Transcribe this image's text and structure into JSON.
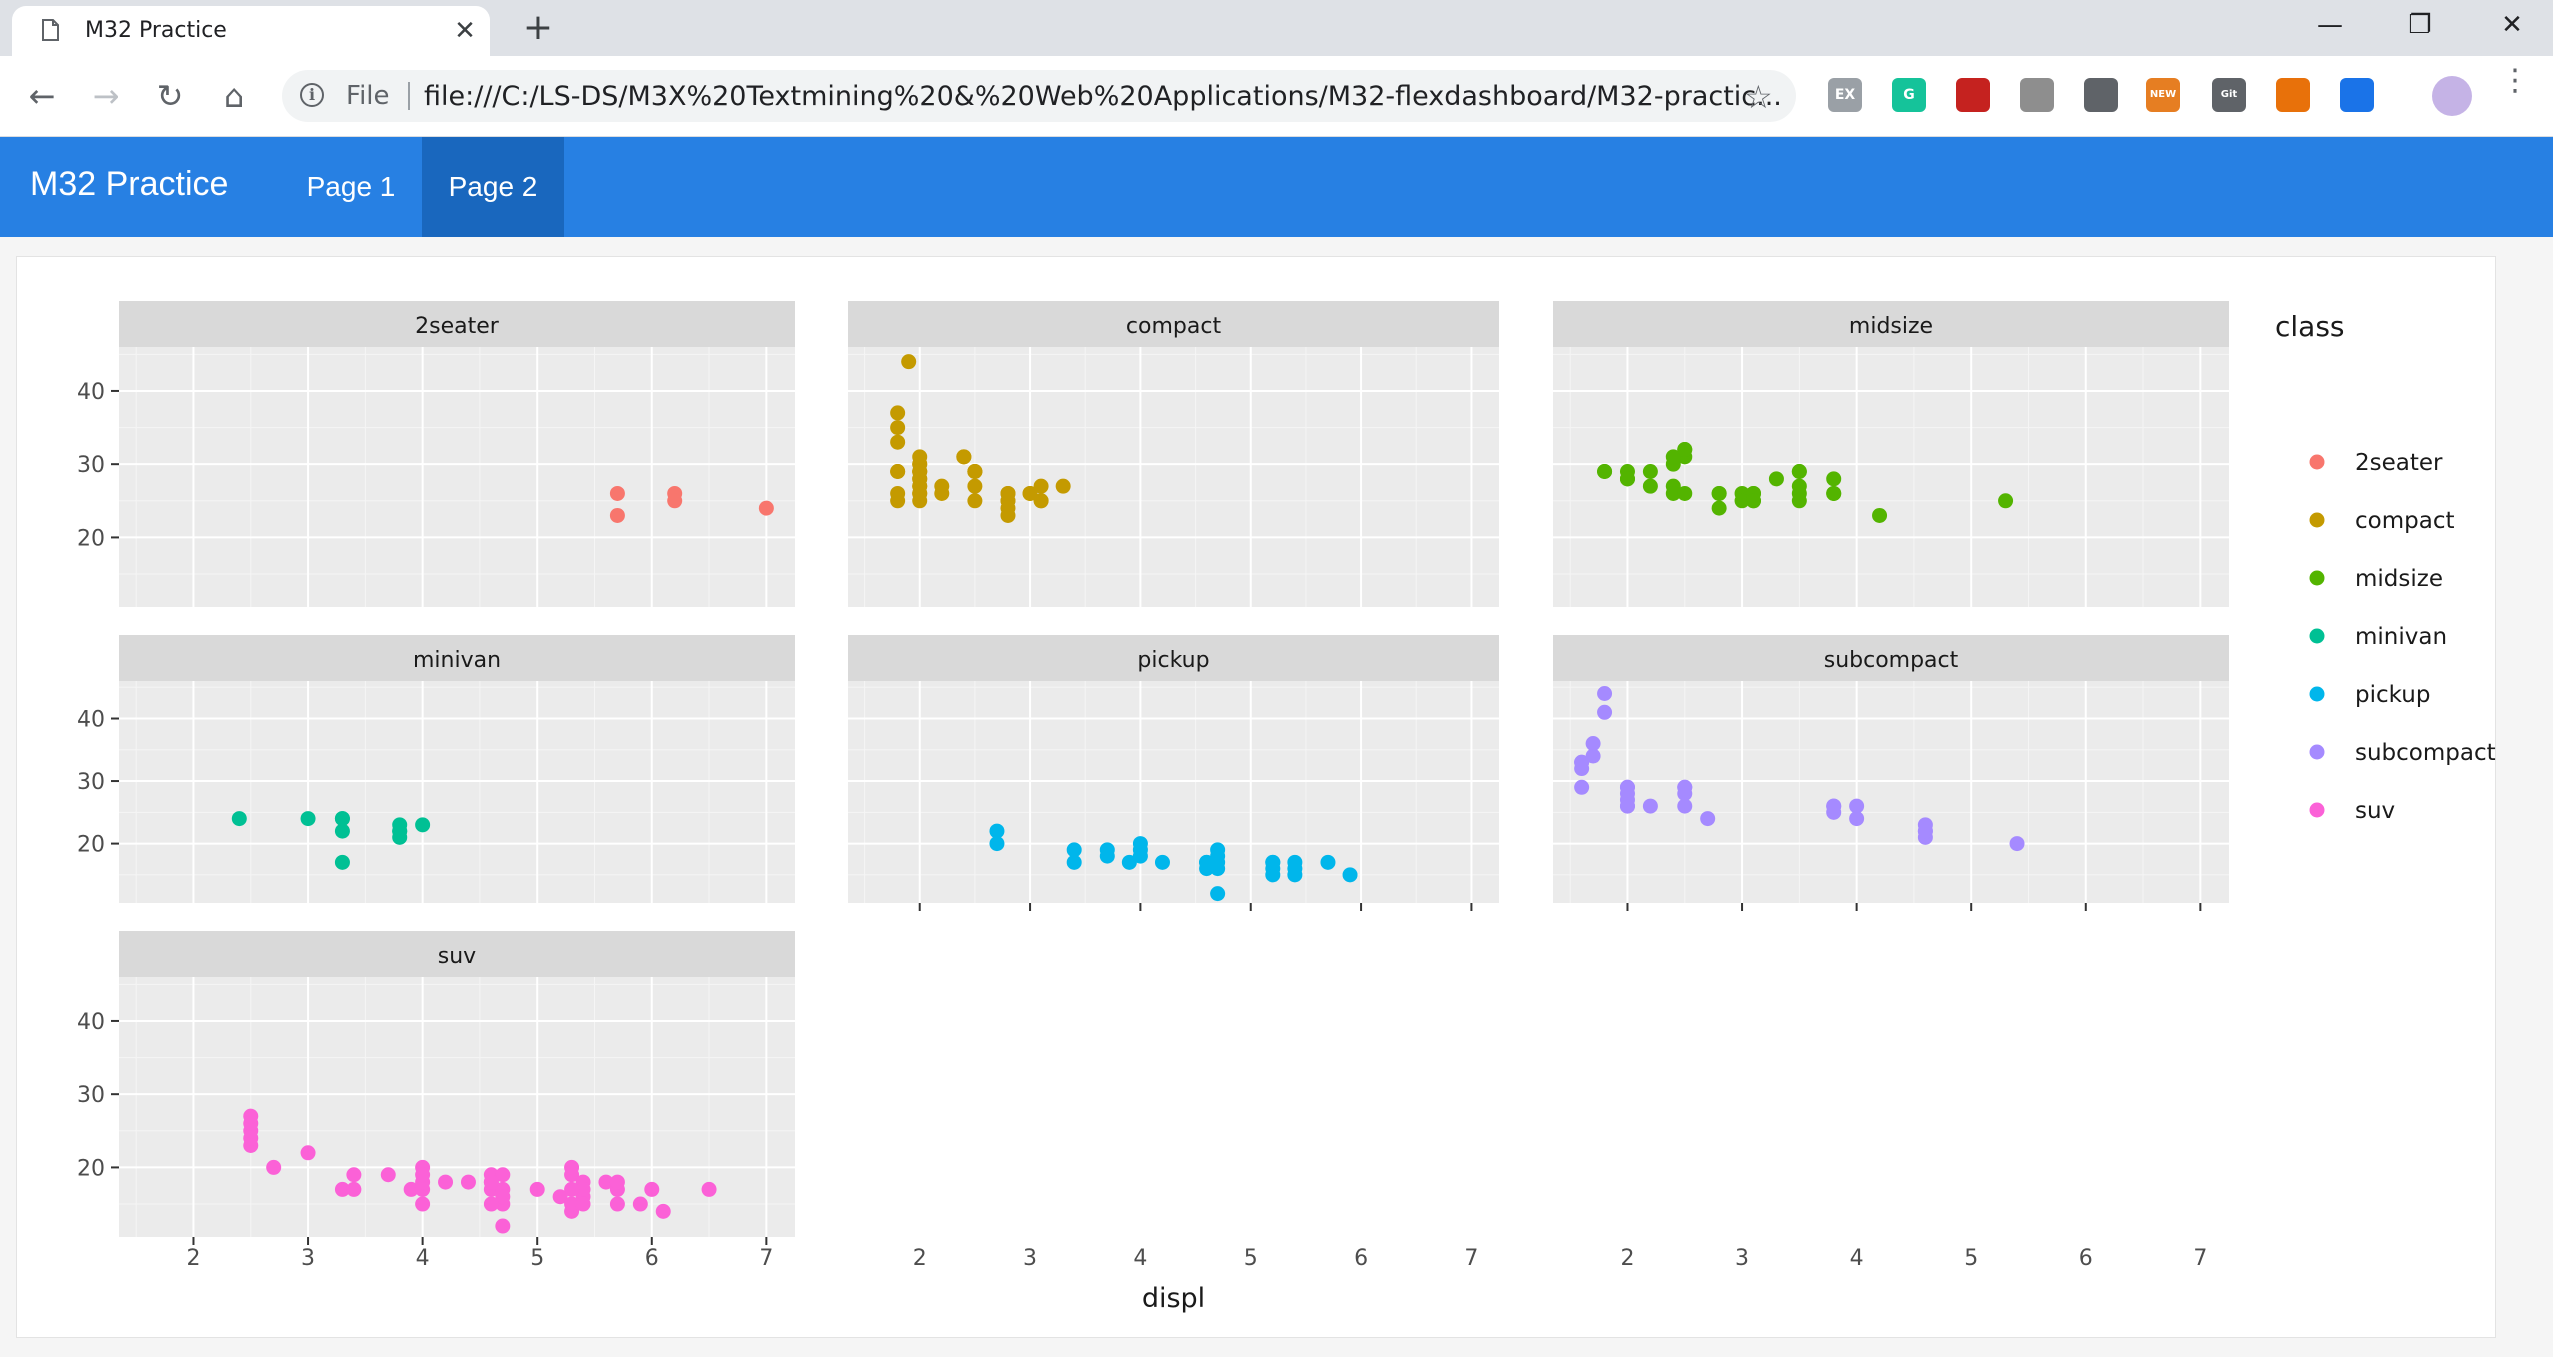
{
  "browser": {
    "tab_title": "M32 Practice",
    "tab_close_glyph": "✕",
    "new_tab_glyph": "+",
    "url_scheme": "File",
    "url": "file:///C:/LS-DS/M3X%20Textmining%20&%20Web%20Applications/M32-flexdashboard/M32-practic...",
    "extensions": [
      {
        "label": "EX",
        "color": "#9aa0a6"
      },
      {
        "label": "G",
        "color": "#15c39a"
      },
      {
        "label": "",
        "color": "#c5221f"
      },
      {
        "label": "",
        "color": "#8e8e8e"
      },
      {
        "label": "",
        "color": "#5f6368"
      },
      {
        "label": "NEW",
        "color": "#e67e22"
      },
      {
        "label": "Git Zip",
        "color": "#5f6368"
      },
      {
        "label": "",
        "color": "#e8710a"
      },
      {
        "label": "",
        "color": "#1a73e8"
      }
    ]
  },
  "dashboard": {
    "brand": "M32 Practice",
    "nav": [
      "Page 1",
      "Page 2"
    ],
    "active_page": "Page 2",
    "navbar_color": "#2780e3",
    "active_color": "#1967be"
  },
  "chart_data": {
    "type": "scatter",
    "facet_by": "class",
    "xlabel": "displ",
    "ylabel": "",
    "x_ticks": [
      2,
      3,
      4,
      5,
      6,
      7
    ],
    "y_ticks": [
      20,
      30,
      40
    ],
    "xlim": [
      1.35,
      7.25
    ],
    "legend": {
      "title": "class",
      "placement": "right",
      "entries": [
        "2seater",
        "compact",
        "midsize",
        "minivan",
        "pickup",
        "subcompact",
        "suv"
      ]
    },
    "colors": {
      "2seater": "#f8766d",
      "compact": "#c49a00",
      "midsize": "#53b400",
      "minivan": "#00c094",
      "pickup": "#00b6eb",
      "subcompact": "#a58aff",
      "suv": "#fb61d7"
    },
    "panel_bg": "#ebebeb",
    "strip_bg": "#d9d9d9",
    "grid": true,
    "facets": [
      {
        "name": "2seater",
        "ylim": [
          10.5,
          46
        ],
        "points": [
          [
            5.7,
            26
          ],
          [
            5.7,
            23
          ],
          [
            6.2,
            26
          ],
          [
            6.2,
            25
          ],
          [
            7.0,
            24
          ]
        ]
      },
      {
        "name": "compact",
        "ylim": [
          10.5,
          46
        ],
        "points": [
          [
            1.8,
            29
          ],
          [
            1.8,
            29
          ],
          [
            2.0,
            31
          ],
          [
            2.0,
            30
          ],
          [
            2.8,
            26
          ],
          [
            2.8,
            26
          ],
          [
            3.1,
            27
          ],
          [
            1.8,
            26
          ],
          [
            1.8,
            25
          ],
          [
            2.0,
            28
          ],
          [
            2.0,
            27
          ],
          [
            2.8,
            25
          ],
          [
            2.8,
            25
          ],
          [
            3.1,
            25
          ],
          [
            3.1,
            25
          ],
          [
            2.2,
            26
          ],
          [
            2.2,
            27
          ],
          [
            2.4,
            31
          ],
          [
            2.4,
            31
          ],
          [
            3.0,
            26
          ],
          [
            3.0,
            26
          ],
          [
            3.3,
            27
          ],
          [
            1.8,
            35
          ],
          [
            1.8,
            37
          ],
          [
            1.8,
            33
          ],
          [
            1.9,
            44
          ],
          [
            2.0,
            29
          ],
          [
            2.0,
            26
          ],
          [
            2.0,
            29
          ],
          [
            2.5,
            29
          ],
          [
            2.5,
            29
          ],
          [
            2.8,
            23
          ],
          [
            2.8,
            24
          ],
          [
            2.5,
            27
          ],
          [
            2.5,
            29
          ],
          [
            2.0,
            30
          ],
          [
            2.0,
            28
          ],
          [
            2.0,
            29
          ],
          [
            2.0,
            25
          ],
          [
            2.5,
            25
          ],
          [
            2.0,
            27
          ],
          [
            2.0,
            26
          ]
        ]
      },
      {
        "name": "midsize",
        "ylim": [
          10.5,
          46
        ],
        "points": [
          [
            1.8,
            29
          ],
          [
            1.8,
            29
          ],
          [
            2.0,
            28
          ],
          [
            2.8,
            26
          ],
          [
            2.8,
            24
          ],
          [
            3.1,
            26
          ],
          [
            3.1,
            25
          ],
          [
            4.2,
            23
          ],
          [
            2.4,
            30
          ],
          [
            2.4,
            27
          ],
          [
            2.5,
            31
          ],
          [
            2.5,
            32
          ],
          [
            3.3,
            28
          ],
          [
            3.5,
            26
          ],
          [
            3.5,
            29
          ],
          [
            3.5,
            25
          ],
          [
            3.8,
            28
          ],
          [
            3.8,
            26
          ],
          [
            3.0,
            26
          ],
          [
            3.0,
            25
          ],
          [
            2.2,
            27
          ],
          [
            2.2,
            29
          ],
          [
            2.4,
            31
          ],
          [
            2.4,
            26
          ],
          [
            2.5,
            26
          ],
          [
            2.5,
            32
          ],
          [
            3.5,
            27
          ],
          [
            3.5,
            29
          ],
          [
            3.8,
            26
          ],
          [
            5.3,
            25
          ],
          [
            2.0,
            29
          ],
          [
            2.0,
            28
          ],
          [
            2.8,
            26
          ],
          [
            3.1,
            26
          ],
          [
            3.1,
            25
          ]
        ]
      },
      {
        "name": "minivan",
        "ylim": [
          10.5,
          46
        ],
        "points": [
          [
            2.4,
            24
          ],
          [
            3.0,
            24
          ],
          [
            3.3,
            22
          ],
          [
            3.3,
            24
          ],
          [
            3.3,
            17
          ],
          [
            3.8,
            22
          ],
          [
            3.8,
            21
          ],
          [
            3.8,
            23
          ],
          [
            4.0,
            23
          ],
          [
            3.3,
            24
          ],
          [
            3.8,
            22
          ]
        ]
      },
      {
        "name": "pickup",
        "ylim": [
          10.5,
          46
        ],
        "points": [
          [
            2.7,
            20
          ],
          [
            2.7,
            22
          ],
          [
            3.4,
            17
          ],
          [
            3.4,
            19
          ],
          [
            3.7,
            18
          ],
          [
            3.7,
            19
          ],
          [
            3.9,
            17
          ],
          [
            4.0,
            18
          ],
          [
            4.0,
            20
          ],
          [
            4.2,
            17
          ],
          [
            4.6,
            16
          ],
          [
            4.6,
            17
          ],
          [
            4.7,
            12
          ],
          [
            4.7,
            16
          ],
          [
            4.7,
            17
          ],
          [
            4.7,
            19
          ],
          [
            5.2,
            16
          ],
          [
            5.2,
            15
          ],
          [
            5.2,
            17
          ],
          [
            5.4,
            17
          ],
          [
            5.4,
            15
          ],
          [
            5.7,
            17
          ],
          [
            5.9,
            15
          ],
          [
            4.0,
            19
          ],
          [
            4.7,
            18
          ],
          [
            4.6,
            17
          ],
          [
            5.2,
            17
          ],
          [
            5.4,
            16
          ]
        ]
      },
      {
        "name": "subcompact",
        "ylim": [
          10.5,
          46
        ],
        "points": [
          [
            1.6,
            33
          ],
          [
            1.6,
            32
          ],
          [
            1.6,
            29
          ],
          [
            1.7,
            34
          ],
          [
            1.7,
            36
          ],
          [
            1.8,
            41
          ],
          [
            1.8,
            44
          ],
          [
            2.0,
            29
          ],
          [
            2.0,
            28
          ],
          [
            2.0,
            26
          ],
          [
            2.0,
            27
          ],
          [
            2.0,
            29
          ],
          [
            2.2,
            26
          ],
          [
            2.5,
            26
          ],
          [
            2.5,
            29
          ],
          [
            2.5,
            28
          ],
          [
            2.7,
            24
          ],
          [
            3.8,
            26
          ],
          [
            3.8,
            25
          ],
          [
            4.0,
            26
          ],
          [
            4.0,
            24
          ],
          [
            4.6,
            21
          ],
          [
            4.6,
            22
          ],
          [
            4.6,
            23
          ],
          [
            5.4,
            20
          ],
          [
            1.6,
            33
          ],
          [
            2.0,
            26
          ],
          [
            2.5,
            29
          ],
          [
            3.8,
            26
          ],
          [
            4.6,
            22
          ]
        ]
      },
      {
        "name": "suv",
        "ylim": [
          10.5,
          46
        ],
        "points": [
          [
            2.5,
            23
          ],
          [
            2.5,
            24
          ],
          [
            2.5,
            25
          ],
          [
            2.5,
            26
          ],
          [
            2.5,
            27
          ],
          [
            2.7,
            20
          ],
          [
            3.0,
            22
          ],
          [
            3.3,
            17
          ],
          [
            3.4,
            17
          ],
          [
            3.4,
            19
          ],
          [
            3.7,
            19
          ],
          [
            3.9,
            17
          ],
          [
            4.0,
            17
          ],
          [
            4.0,
            15
          ],
          [
            4.0,
            18
          ],
          [
            4.0,
            20
          ],
          [
            4.0,
            19
          ],
          [
            4.2,
            18
          ],
          [
            4.4,
            18
          ],
          [
            4.6,
            17
          ],
          [
            4.6,
            18
          ],
          [
            4.6,
            19
          ],
          [
            4.7,
            12
          ],
          [
            4.7,
            15
          ],
          [
            4.7,
            17
          ],
          [
            4.7,
            19
          ],
          [
            4.7,
            16
          ],
          [
            4.6,
            15
          ],
          [
            5.0,
            17
          ],
          [
            5.2,
            16
          ],
          [
            5.3,
            14
          ],
          [
            5.3,
            15
          ],
          [
            5.3,
            19
          ],
          [
            5.3,
            20
          ],
          [
            5.4,
            16
          ],
          [
            5.4,
            18
          ],
          [
            5.4,
            17
          ],
          [
            5.4,
            15
          ],
          [
            5.6,
            18
          ],
          [
            5.7,
            17
          ],
          [
            5.7,
            15
          ],
          [
            5.7,
            18
          ],
          [
            5.9,
            15
          ],
          [
            6.0,
            17
          ],
          [
            6.1,
            14
          ],
          [
            6.5,
            17
          ],
          [
            4.6,
            18
          ],
          [
            5.3,
            17
          ]
        ]
      }
    ]
  }
}
